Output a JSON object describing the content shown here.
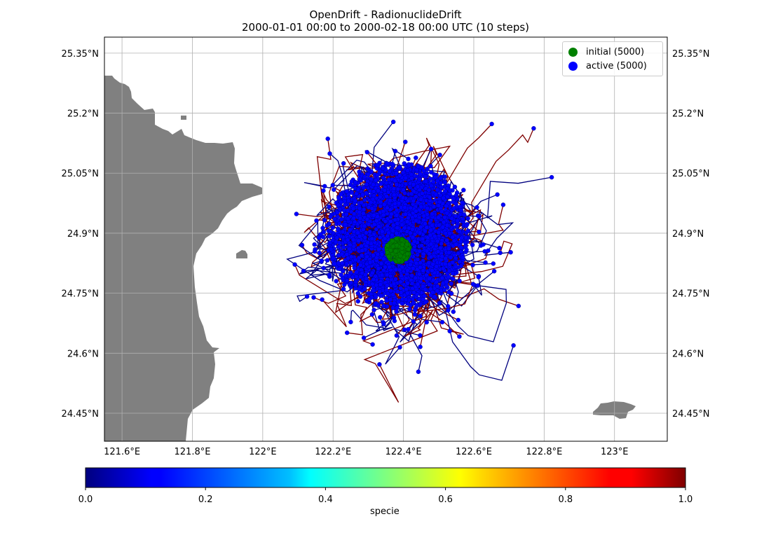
{
  "header": {
    "title_line1": "OpenDrift - RadionuclideDrift",
    "title_line2": "2000-01-01 00:00 to 2000-02-18 00:00 UTC (10 steps)"
  },
  "map": {
    "lon_range": [
      121.55,
      123.15
    ],
    "lat_range": [
      24.38,
      25.39
    ],
    "lon_ticks": [
      121.6,
      121.8,
      122.0,
      122.2,
      122.4,
      122.6,
      122.8,
      123.0
    ],
    "lon_tick_labels": [
      "121.6°E",
      "121.8°E",
      "122°E",
      "122.2°E",
      "122.4°E",
      "122.6°E",
      "122.8°E",
      "123°E"
    ],
    "lat_ticks": [
      25.35,
      25.2,
      25.05,
      24.9,
      24.75,
      24.6,
      24.45
    ],
    "lat_tick_labels": [
      "25.35°N",
      "25.2°N",
      "25.05°N",
      "24.9°N",
      "24.75°N",
      "24.6°N",
      "24.45°N"
    ],
    "grid": true,
    "land_color": "#808080",
    "release_center": [
      122.385,
      24.88
    ],
    "initial_color": "#008000",
    "active_color": "#0000ff"
  },
  "legend": {
    "position": "top-right",
    "items": [
      {
        "label": "initial (5000)",
        "color": "#008000"
      },
      {
        "label": "active (5000)",
        "color": "#0000ff"
      }
    ]
  },
  "colorbar": {
    "colormap": "jet",
    "ticks": [
      "0.0",
      "0.2",
      "0.4",
      "0.6",
      "0.8",
      "1.0"
    ],
    "label": "specie"
  }
}
